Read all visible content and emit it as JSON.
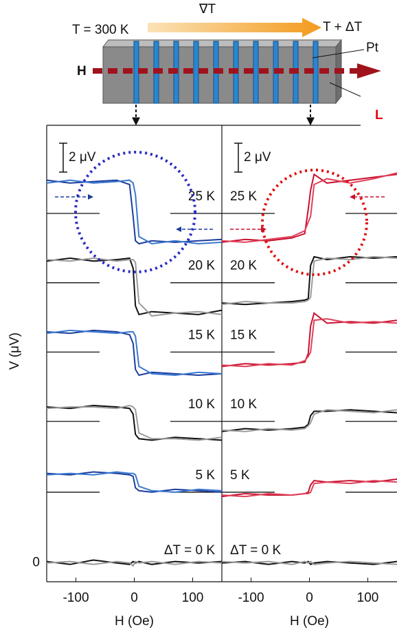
{
  "diagram": {
    "left_temp": "T = 300 K",
    "gradient": "∇T",
    "right_temp": "T + ΔT",
    "pt_label": "Pt",
    "field_label": "H",
    "cut_label": "L"
  },
  "chart_data": [
    {
      "type": "line",
      "x_label": "H (Oe)",
      "y_label": "V (μV)",
      "scale_bar": {
        "value": 2,
        "label": "2 μV"
      },
      "x": [
        -150,
        -110,
        -70,
        -30,
        -8,
        -2,
        2,
        8,
        30,
        70,
        110,
        150
      ],
      "xlim": [
        -150,
        150
      ],
      "xticks": [
        -100,
        0,
        100
      ],
      "ylim": [
        -1.3,
        30.3
      ],
      "yticks": [
        0
      ],
      "series": [
        {
          "name": "25 K",
          "baseline": 24.2,
          "sweeps": [
            {
              "color": "#1c3c9c",
              "values": [
                26.5,
                26.3,
                26.4,
                26.5,
                26.2,
                24.0,
                22.3,
                22.1,
                22.3,
                22.2,
                22.3,
                22.4
              ]
            },
            {
              "color": "#3a78d0",
              "values": [
                26.3,
                26.5,
                26.3,
                26.4,
                26.5,
                26.3,
                25.5,
                22.6,
                22.1,
                22.3,
                22.1,
                22.2
              ]
            }
          ]
        },
        {
          "name": "20 K",
          "baseline": 19.4,
          "sweeps": [
            {
              "color": "#111111",
              "values": [
                20.9,
                21.1,
                20.9,
                21.0,
                21.1,
                20.4,
                17.8,
                17.2,
                17.4,
                17.3,
                17.2,
                17.5
              ]
            },
            {
              "color": "#9a9a9a",
              "values": [
                21.0,
                20.9,
                21.1,
                20.9,
                21.0,
                21.0,
                20.8,
                18.0,
                17.1,
                17.3,
                17.4,
                17.2
              ]
            }
          ]
        },
        {
          "name": "15 K",
          "baseline": 14.6,
          "sweeps": [
            {
              "color": "#1c3c9c",
              "values": [
                16.0,
                15.9,
                16.1,
                16.0,
                15.8,
                15.2,
                13.4,
                13.0,
                13.2,
                13.1,
                13.0,
                13.1
              ]
            },
            {
              "color": "#3a78d0",
              "values": [
                15.9,
                16.1,
                16.0,
                15.9,
                16.0,
                16.0,
                15.7,
                13.6,
                13.1,
                13.0,
                13.2,
                13.1
              ]
            }
          ]
        },
        {
          "name": "10 K",
          "baseline": 9.8,
          "sweeps": [
            {
              "color": "#111111",
              "values": [
                10.8,
                10.7,
                10.9,
                10.8,
                10.7,
                10.3,
                8.9,
                8.6,
                8.5,
                8.7,
                8.6,
                8.5
              ]
            },
            {
              "color": "#9a9a9a",
              "values": [
                10.7,
                10.8,
                10.8,
                10.7,
                10.9,
                10.8,
                10.6,
                9.0,
                8.6,
                8.6,
                8.5,
                8.7
              ]
            }
          ]
        },
        {
          "name": "5 K",
          "baseline": 4.9,
          "sweeps": [
            {
              "color": "#1c3c9c",
              "values": [
                6.2,
                6.1,
                6.3,
                6.2,
                6.1,
                6.0,
                5.2,
                5.0,
                4.9,
                5.1,
                5.0,
                4.9
              ]
            },
            {
              "color": "#3a78d0",
              "values": [
                6.1,
                6.2,
                6.1,
                6.3,
                6.2,
                6.2,
                6.1,
                5.3,
                5.0,
                4.9,
                5.1,
                5.0
              ]
            }
          ]
        },
        {
          "name": "ΔT = 0 K",
          "sweeps": [
            {
              "color": "#111111",
              "values": [
                0.1,
                -0.1,
                0.2,
                0.0,
                -0.1,
                0.1,
                0.0,
                0.1,
                -0.1,
                0.1,
                0.0,
                0.1
              ]
            },
            {
              "color": "#9a9a9a",
              "values": [
                0.0,
                0.1,
                -0.1,
                0.1,
                0.0,
                -0.2,
                0.1,
                0.0,
                0.1,
                -0.1,
                0.1,
                0.0
              ]
            }
          ]
        }
      ]
    },
    {
      "type": "line",
      "x_label": "H (Oe)",
      "scale_bar": {
        "value": 2,
        "label": "2 μV"
      },
      "x": [
        -150,
        -110,
        -70,
        -30,
        -8,
        -2,
        2,
        8,
        30,
        70,
        110,
        150
      ],
      "xlim": [
        -150,
        150
      ],
      "xticks": [
        -100,
        0,
        100
      ],
      "ylim": [
        -1.3,
        30.3
      ],
      "series": [
        {
          "name": "25 K",
          "baseline": 24.2,
          "sweeps": [
            {
              "color": "#c8102e",
              "values": [
                22.2,
                22.4,
                22.3,
                22.5,
                22.8,
                24.5,
                25.8,
                26.9,
                26.3,
                26.5,
                26.7,
                26.9
              ]
            },
            {
              "color": "#e0405a",
              "values": [
                22.3,
                22.2,
                22.4,
                22.6,
                23.0,
                23.6,
                24.0,
                26.2,
                26.6,
                26.3,
                26.6,
                27.0
              ]
            }
          ]
        },
        {
          "name": "20 K",
          "baseline": 19.4,
          "sweeps": [
            {
              "color": "#111111",
              "values": [
                18.0,
                17.9,
                18.0,
                18.1,
                18.2,
                18.3,
                20.6,
                21.2,
                21.0,
                21.2,
                21.1,
                21.2
              ]
            },
            {
              "color": "#9a9a9a",
              "values": [
                17.9,
                18.1,
                18.0,
                18.0,
                18.1,
                18.2,
                18.4,
                20.9,
                21.1,
                21.0,
                21.2,
                21.1
              ]
            }
          ]
        },
        {
          "name": "15 K",
          "baseline": 14.6,
          "sweeps": [
            {
              "color": "#c8102e",
              "values": [
                13.6,
                13.8,
                13.7,
                13.8,
                13.9,
                14.5,
                16.4,
                17.3,
                16.6,
                16.7,
                16.6,
                16.8
              ]
            },
            {
              "color": "#e0405a",
              "values": [
                13.7,
                13.6,
                13.8,
                13.7,
                14.0,
                14.3,
                14.6,
                16.8,
                16.9,
                16.6,
                16.7,
                16.6
              ]
            }
          ]
        },
        {
          "name": "10 K",
          "baseline": 9.8,
          "sweeps": [
            {
              "color": "#111111",
              "values": [
                9.1,
                9.3,
                9.2,
                9.3,
                9.4,
                9.6,
                10.2,
                10.5,
                10.5,
                10.6,
                10.5,
                10.4
              ]
            },
            {
              "color": "#9a9a9a",
              "values": [
                9.2,
                9.1,
                9.3,
                9.2,
                9.3,
                9.5,
                9.7,
                10.3,
                10.6,
                10.5,
                10.4,
                10.6
              ]
            }
          ]
        },
        {
          "name": "5 K",
          "baseline": 4.9,
          "sweeps": [
            {
              "color": "#c8102e",
              "values": [
                4.6,
                4.8,
                4.7,
                4.7,
                4.8,
                4.9,
                5.4,
                5.7,
                5.6,
                5.7,
                5.6,
                5.8
              ]
            },
            {
              "color": "#e0405a",
              "values": [
                4.7,
                4.6,
                4.8,
                4.7,
                4.8,
                4.8,
                4.9,
                5.5,
                5.6,
                5.5,
                5.7,
                5.6
              ]
            }
          ]
        },
        {
          "name": "ΔT = 0 K",
          "sweeps": [
            {
              "color": "#111111",
              "values": [
                0.0,
                0.1,
                -0.1,
                0.1,
                0.0,
                0.1,
                -0.1,
                0.0,
                0.1,
                0.0,
                -0.1,
                0.1
              ]
            },
            {
              "color": "#9a9a9a",
              "values": [
                0.1,
                0.0,
                0.1,
                -0.1,
                0.1,
                0.0,
                0.1,
                -0.1,
                0.0,
                0.1,
                0.0,
                -0.1
              ]
            }
          ]
        }
      ]
    }
  ]
}
